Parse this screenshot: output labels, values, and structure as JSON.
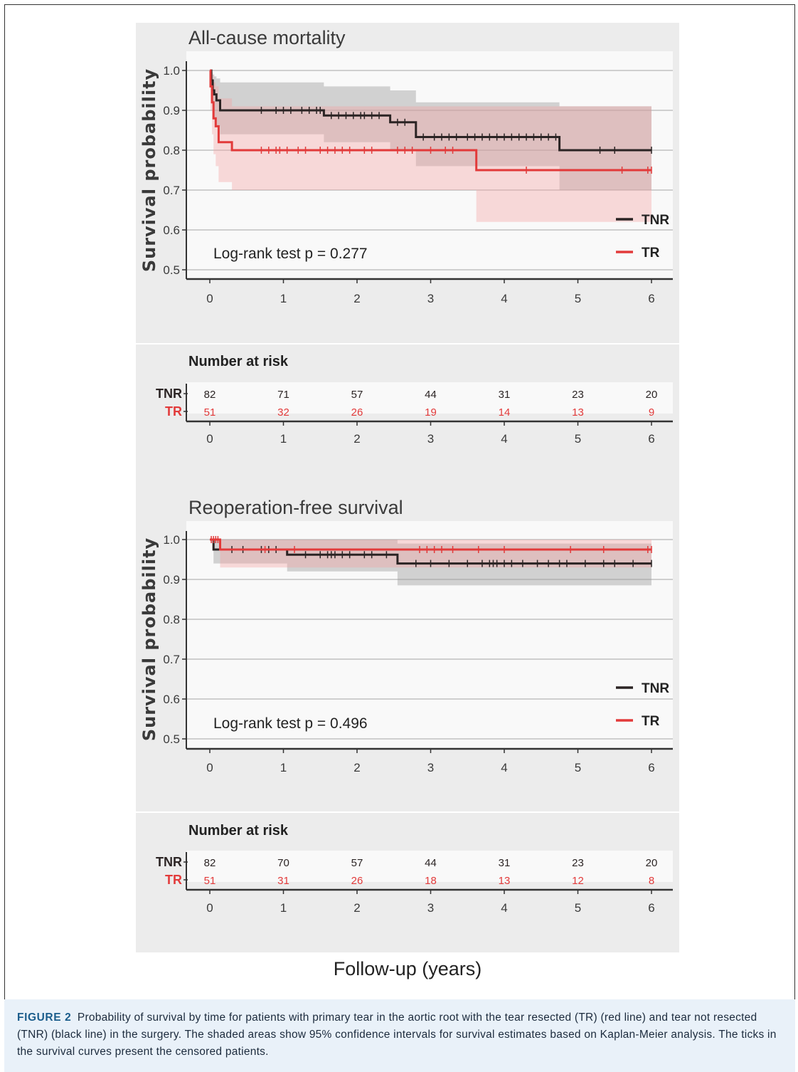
{
  "figure": {
    "xlabel": "Follow-up (years)",
    "caption_label": "FIGURE 2",
    "caption_text": "Probability of survival by time for patients with primary tear in the aortic root with the tear resected (TR) (red line) and tear not resected (TNR) (black line) in the surgery. The shaded areas show 95% confidence intervals for survival estimates based on Kaplan-Meier analysis. The ticks in the survival curves present the censored patients."
  },
  "colors": {
    "TNR": "#2b2424",
    "TR": "#e23a3a",
    "TNR_ci": "#9a9a9a",
    "TR_ci": "#f4a3a3",
    "panel_bg": "#ececec",
    "plot_bg": "#f9f9f9",
    "grid": "#cfcfcf"
  },
  "chart_data": [
    {
      "type": "line",
      "title": "All-cause mortality",
      "ylabel": "Survival probability",
      "xlabel": "Follow-up (years)",
      "xlim": [
        0,
        6
      ],
      "ylim": [
        0.5,
        1.0
      ],
      "yticks": [
        "0.5",
        "0.6",
        "0.7",
        "0.8",
        "0.9",
        "1.0"
      ],
      "xticks": [
        "0",
        "1",
        "2",
        "3",
        "4",
        "5",
        "6"
      ],
      "annotation": "Log-rank test p = 0.277",
      "legend": [
        "TNR",
        "TR"
      ],
      "legend_position": "bottom-right",
      "grid": true,
      "series": [
        {
          "name": "TNR",
          "step_x": [
            0,
            0.02,
            0.04,
            0.06,
            0.09,
            0.14,
            1.55,
            2.45,
            2.8,
            4.75,
            6.0
          ],
          "step_y": [
            1.0,
            0.975,
            0.95,
            0.94,
            0.925,
            0.9,
            0.887,
            0.87,
            0.833,
            0.8,
            0.8
          ],
          "ci_lower": [
            1.0,
            0.94,
            0.9,
            0.88,
            0.86,
            0.84,
            0.82,
            0.8,
            0.76,
            0.7,
            0.7
          ],
          "ci_upper": [
            1.0,
            0.995,
            0.99,
            0.985,
            0.98,
            0.97,
            0.96,
            0.95,
            0.92,
            0.91,
            0.91
          ],
          "censored": [
            0.7,
            0.9,
            1.0,
            1.1,
            1.25,
            1.35,
            1.45,
            1.5,
            1.65,
            1.75,
            1.85,
            1.95,
            2.05,
            2.1,
            2.2,
            2.3,
            2.55,
            2.65,
            2.9,
            3.05,
            3.15,
            3.25,
            3.35,
            3.5,
            3.6,
            3.7,
            3.8,
            3.9,
            4.0,
            4.1,
            4.2,
            4.3,
            4.4,
            4.5,
            4.6,
            4.7,
            5.3,
            5.5,
            6.0
          ]
        },
        {
          "name": "TR",
          "step_x": [
            0,
            0.01,
            0.03,
            0.05,
            0.08,
            0.12,
            0.3,
            3.62,
            6.0
          ],
          "step_y": [
            1.0,
            0.96,
            0.92,
            0.88,
            0.86,
            0.82,
            0.8,
            0.75,
            0.75
          ],
          "ci_lower": [
            1.0,
            0.9,
            0.84,
            0.79,
            0.76,
            0.72,
            0.7,
            0.62,
            0.62
          ],
          "ci_upper": [
            1.0,
            1.0,
            0.99,
            0.97,
            0.96,
            0.93,
            0.91,
            0.91,
            0.91
          ],
          "censored": [
            0.7,
            0.8,
            0.9,
            0.95,
            1.05,
            1.2,
            1.3,
            1.5,
            1.6,
            1.7,
            1.8,
            1.9,
            2.1,
            2.2,
            2.55,
            2.65,
            2.75,
            3.0,
            3.2,
            3.3,
            4.3,
            5.6,
            5.95,
            6.0
          ]
        }
      ],
      "risk_table": {
        "title": "Number at risk",
        "rows": [
          {
            "label": "TNR",
            "values": [
              "82",
              "71",
              "57",
              "44",
              "31",
              "23",
              "20"
            ]
          },
          {
            "label": "TR",
            "values": [
              "51",
              "32",
              "26",
              "19",
              "14",
              "13",
              "9"
            ]
          }
        ]
      }
    },
    {
      "type": "line",
      "title": "Reoperation-free survival",
      "ylabel": "Survival probability",
      "xlabel": "Follow-up (years)",
      "xlim": [
        0,
        6
      ],
      "ylim": [
        0.5,
        1.0
      ],
      "yticks": [
        "0.5",
        "0.6",
        "0.7",
        "0.8",
        "0.9",
        "1.0"
      ],
      "xticks": [
        "0",
        "1",
        "2",
        "3",
        "4",
        "5",
        "6"
      ],
      "annotation": "Log-rank test p = 0.496",
      "legend": [
        "TNR",
        "TR"
      ],
      "legend_position": "bottom-right",
      "grid": true,
      "series": [
        {
          "name": "TNR",
          "step_x": [
            0,
            0.05,
            1.05,
            2.55,
            6.0
          ],
          "step_y": [
            1.0,
            0.975,
            0.962,
            0.94,
            0.94
          ],
          "ci_lower": [
            1.0,
            0.94,
            0.92,
            0.885,
            0.885
          ],
          "ci_upper": [
            1.0,
            1.0,
            1.0,
            0.99,
            0.99
          ],
          "censored": [
            0.3,
            0.45,
            0.7,
            0.8,
            0.9,
            1.3,
            1.5,
            1.6,
            1.65,
            1.7,
            1.8,
            1.9,
            2.1,
            2.2,
            2.4,
            2.8,
            3.0,
            3.25,
            3.5,
            3.7,
            3.8,
            3.85,
            3.9,
            4.0,
            4.1,
            4.25,
            4.45,
            4.6,
            4.75,
            4.85,
            5.1,
            5.35,
            5.5,
            5.75,
            6.0
          ]
        },
        {
          "name": "TR",
          "step_x": [
            0,
            0.14,
            6.0
          ],
          "step_y": [
            1.0,
            0.975,
            0.975
          ],
          "ci_lower": [
            1.0,
            0.93,
            0.93
          ],
          "ci_upper": [
            1.0,
            1.0,
            1.0
          ],
          "censored": [
            0.02,
            0.05,
            0.08,
            0.11,
            0.75,
            1.15,
            2.85,
            2.95,
            3.05,
            3.15,
            3.3,
            3.65,
            4.0,
            4.9,
            5.35,
            5.95,
            6.0
          ]
        }
      ],
      "risk_table": {
        "title": "Number at risk",
        "rows": [
          {
            "label": "TNR",
            "values": [
              "82",
              "70",
              "57",
              "44",
              "31",
              "23",
              "20"
            ]
          },
          {
            "label": "TR",
            "values": [
              "51",
              "31",
              "26",
              "18",
              "13",
              "12",
              "8"
            ]
          }
        ]
      }
    }
  ]
}
